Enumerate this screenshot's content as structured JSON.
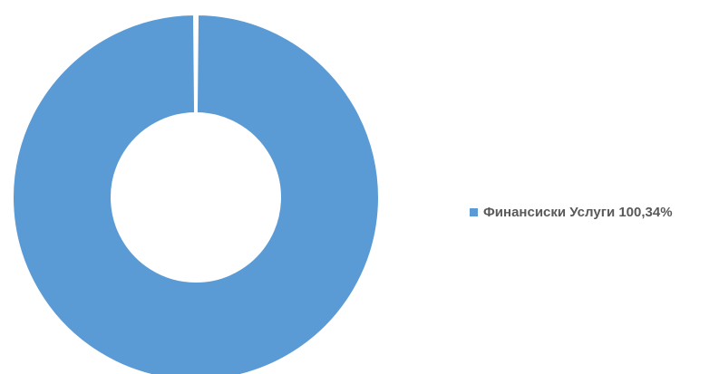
{
  "chart_data": {
    "type": "pie",
    "subtype": "donut",
    "title": "",
    "categories": [
      "Финансиски Услуги"
    ],
    "values": [
      100.34
    ],
    "value_labels": [
      "100,34%"
    ],
    "colors": [
      "#5b9bd5"
    ],
    "legend": {
      "position": "right",
      "entries": [
        {
          "label": "Финансиски Услуги 100,34%",
          "color": "#5b9bd5"
        }
      ]
    }
  }
}
